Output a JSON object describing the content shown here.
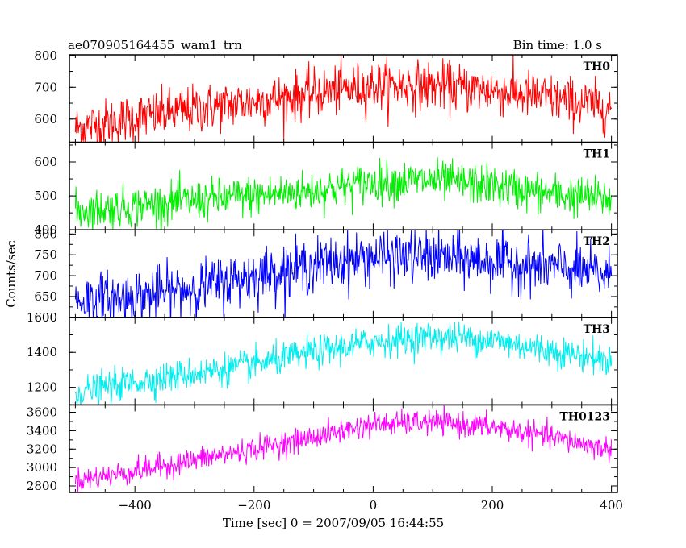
{
  "header": {
    "left_title": "ae070905164455_wam1_trn",
    "right_title": "Bin time: 1.0 s"
  },
  "chart_data": {
    "type": "line",
    "title": "ae070905164455_wam1_trn",
    "subtitle": "Bin time: 1.0 s",
    "xlabel": "Time [sec] 0 = 2007/09/05 16:44:55",
    "ylabel": "Counts/sec",
    "xlim": [
      -510,
      410
    ],
    "xticks": [
      -400,
      -200,
      0,
      200,
      400
    ],
    "xtick_labels": [
      "−400",
      "−200",
      "0",
      "200",
      "400"
    ],
    "bin_time_s": 1.0,
    "x_range_data": [
      -500,
      400
    ],
    "panels": [
      {
        "name": "TH0",
        "color": "#ff0000",
        "ylim": [
          527,
          802
        ],
        "yticks": [
          600,
          700,
          800
        ],
        "ytick_labels": [
          "600",
          "700",
          "800"
        ],
        "trend": {
          "x": [
            -500,
            -400,
            -300,
            -200,
            -100,
            0,
            100,
            200,
            300,
            400
          ],
          "y": [
            570,
            605,
            630,
            655,
            680,
            705,
            705,
            690,
            665,
            635
          ]
        },
        "noise": 38
      },
      {
        "name": "TH1",
        "color": "#00ee00",
        "ylim": [
          400,
          658
        ],
        "yticks": [
          400,
          500,
          600
        ],
        "ytick_labels": [
          "400",
          "500",
          "600"
        ],
        "trend": {
          "x": [
            -500,
            -400,
            -300,
            -200,
            -100,
            0,
            100,
            200,
            300,
            400
          ],
          "y": [
            455,
            470,
            485,
            500,
            515,
            540,
            545,
            530,
            505,
            490
          ]
        },
        "noise": 30
      },
      {
        "name": "TH2",
        "color": "#0000ff",
        "ylim": [
          600,
          810
        ],
        "yticks": [
          600,
          650,
          700,
          750,
          800
        ],
        "ytick_labels": [
          "600",
          "650",
          "700",
          "750",
          "800"
        ],
        "trend": {
          "x": [
            -500,
            -400,
            -300,
            -200,
            -100,
            0,
            100,
            200,
            300,
            400
          ],
          "y": [
            640,
            650,
            670,
            700,
            725,
            745,
            745,
            735,
            720,
            700
          ]
        },
        "noise": 32
      },
      {
        "name": "TH3",
        "color": "#00eeee",
        "ylim": [
          1100,
          1600
        ],
        "yticks": [
          1200,
          1400,
          1600
        ],
        "ytick_labels": [
          "1200",
          "1400",
          "1600"
        ],
        "trend": {
          "x": [
            -500,
            -400,
            -300,
            -200,
            -100,
            0,
            100,
            200,
            300,
            400
          ],
          "y": [
            1170,
            1230,
            1280,
            1330,
            1400,
            1460,
            1490,
            1470,
            1410,
            1350
          ]
        },
        "noise": 45
      },
      {
        "name": "TH0123",
        "color": "#ff00ff",
        "ylim": [
          2730,
          3680
        ],
        "yticks": [
          2800,
          3000,
          3200,
          3400,
          3600
        ],
        "ytick_labels": [
          "2800",
          "3000",
          "3200",
          "3400",
          "3600"
        ],
        "trend": {
          "x": [
            -500,
            -400,
            -300,
            -200,
            -100,
            0,
            100,
            200,
            300,
            400
          ],
          "y": [
            2860,
            2960,
            3080,
            3200,
            3330,
            3470,
            3490,
            3440,
            3330,
            3190
          ]
        },
        "noise": 65
      }
    ]
  }
}
